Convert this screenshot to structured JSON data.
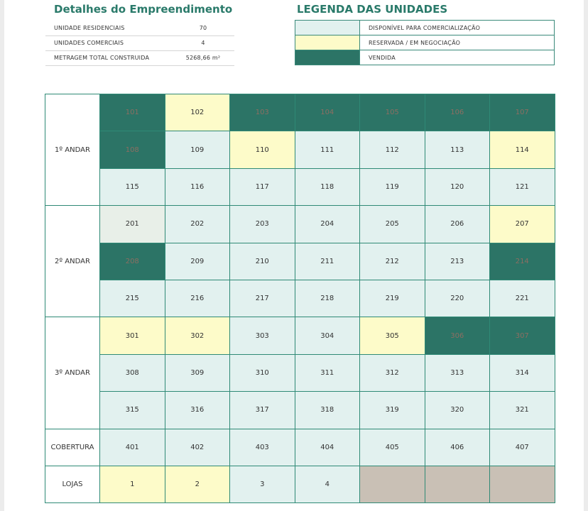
{
  "details": {
    "title": "Detalhes do Empreendimento",
    "rows": [
      {
        "label": "UNIDADE RESIDENCIAIS",
        "value": "70"
      },
      {
        "label": "UNIDADES COMERCIAIS",
        "value": "4"
      },
      {
        "label": "METRAGEM TOTAL CONSTRUIDA",
        "value": "5268,66 m²"
      }
    ]
  },
  "legend": {
    "title": "LEGENDA DAS UNIDADES",
    "items": [
      {
        "label": "DISPONÍVEL PARA COMERCIALIZAÇÃO",
        "color": "#e2f1ef"
      },
      {
        "label": "RESERVADA / EM NEGOCIAÇÃO",
        "color": "#fdfbc9"
      },
      {
        "label": "VENDIDA",
        "color": "#2c7466"
      }
    ]
  },
  "floors": [
    {
      "name": "1º ANDAR",
      "rows": [
        [
          {
            "unit": "101",
            "status": "sold"
          },
          {
            "unit": "102",
            "status": "reserved"
          },
          {
            "unit": "103",
            "status": "sold"
          },
          {
            "unit": "104",
            "status": "sold"
          },
          {
            "unit": "105",
            "status": "sold"
          },
          {
            "unit": "106",
            "status": "sold"
          },
          {
            "unit": "107",
            "status": "sold"
          }
        ],
        [
          {
            "unit": "108",
            "status": "sold"
          },
          {
            "unit": "109",
            "status": "available"
          },
          {
            "unit": "110",
            "status": "reserved"
          },
          {
            "unit": "111",
            "status": "available"
          },
          {
            "unit": "112",
            "status": "available"
          },
          {
            "unit": "113",
            "status": "available"
          },
          {
            "unit": "114",
            "status": "reserved"
          }
        ],
        [
          {
            "unit": "115",
            "status": "available"
          },
          {
            "unit": "116",
            "status": "available"
          },
          {
            "unit": "117",
            "status": "available"
          },
          {
            "unit": "118",
            "status": "available"
          },
          {
            "unit": "119",
            "status": "available"
          },
          {
            "unit": "120",
            "status": "available"
          },
          {
            "unit": "121",
            "status": "available"
          }
        ]
      ]
    },
    {
      "name": "2º ANDAR",
      "rows": [
        [
          {
            "unit": "201",
            "status": "grey"
          },
          {
            "unit": "202",
            "status": "available"
          },
          {
            "unit": "203",
            "status": "available"
          },
          {
            "unit": "204",
            "status": "available"
          },
          {
            "unit": "205",
            "status": "available"
          },
          {
            "unit": "206",
            "status": "available"
          },
          {
            "unit": "207",
            "status": "reserved"
          }
        ],
        [
          {
            "unit": "208",
            "status": "sold"
          },
          {
            "unit": "209",
            "status": "available"
          },
          {
            "unit": "210",
            "status": "available"
          },
          {
            "unit": "211",
            "status": "available"
          },
          {
            "unit": "212",
            "status": "available"
          },
          {
            "unit": "213",
            "status": "available"
          },
          {
            "unit": "214",
            "status": "sold"
          }
        ],
        [
          {
            "unit": "215",
            "status": "available"
          },
          {
            "unit": "216",
            "status": "available"
          },
          {
            "unit": "217",
            "status": "available"
          },
          {
            "unit": "218",
            "status": "available"
          },
          {
            "unit": "219",
            "status": "available"
          },
          {
            "unit": "220",
            "status": "available"
          },
          {
            "unit": "221",
            "status": "available"
          }
        ]
      ]
    },
    {
      "name": "3º ANDAR",
      "rows": [
        [
          {
            "unit": "301",
            "status": "reserved"
          },
          {
            "unit": "302",
            "status": "reserved"
          },
          {
            "unit": "303",
            "status": "available"
          },
          {
            "unit": "304",
            "status": "available"
          },
          {
            "unit": "305",
            "status": "reserved"
          },
          {
            "unit": "306",
            "status": "sold"
          },
          {
            "unit": "307",
            "status": "sold"
          }
        ],
        [
          {
            "unit": "308",
            "status": "available"
          },
          {
            "unit": "309",
            "status": "available"
          },
          {
            "unit": "310",
            "status": "available"
          },
          {
            "unit": "311",
            "status": "available"
          },
          {
            "unit": "312",
            "status": "available"
          },
          {
            "unit": "313",
            "status": "available"
          },
          {
            "unit": "314",
            "status": "available"
          }
        ],
        [
          {
            "unit": "315",
            "status": "available"
          },
          {
            "unit": "316",
            "status": "available"
          },
          {
            "unit": "317",
            "status": "available"
          },
          {
            "unit": "318",
            "status": "available"
          },
          {
            "unit": "319",
            "status": "available"
          },
          {
            "unit": "320",
            "status": "available"
          },
          {
            "unit": "321",
            "status": "available"
          }
        ]
      ]
    },
    {
      "name": "COBERTURA",
      "rows": [
        [
          {
            "unit": "401",
            "status": "available"
          },
          {
            "unit": "402",
            "status": "available"
          },
          {
            "unit": "403",
            "status": "available"
          },
          {
            "unit": "404",
            "status": "available"
          },
          {
            "unit": "405",
            "status": "available"
          },
          {
            "unit": "406",
            "status": "available"
          },
          {
            "unit": "407",
            "status": "available"
          }
        ]
      ]
    },
    {
      "name": "LOJAS",
      "rows": [
        [
          {
            "unit": "1",
            "status": "reserved"
          },
          {
            "unit": "2",
            "status": "reserved"
          },
          {
            "unit": "3",
            "status": "available"
          },
          {
            "unit": "4",
            "status": "available"
          },
          {
            "unit": "",
            "status": "none"
          },
          {
            "unit": "",
            "status": "none"
          },
          {
            "unit": "",
            "status": "none"
          }
        ]
      ]
    }
  ]
}
